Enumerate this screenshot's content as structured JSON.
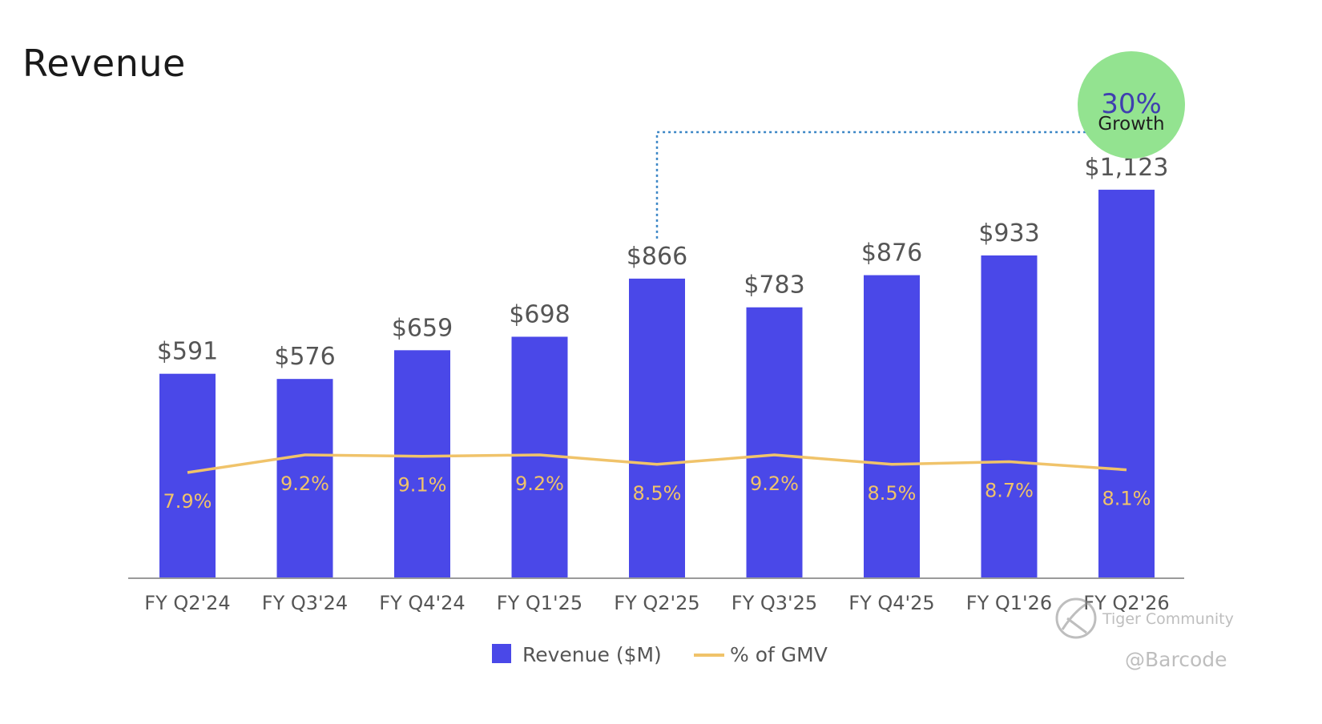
{
  "page_title": "Revenue",
  "chart_data": {
    "type": "bar",
    "title": "Revenue",
    "categories": [
      "FY Q2'24",
      "FY Q3'24",
      "FY Q4'24",
      "FY Q1'25",
      "FY Q2'25",
      "FY Q3'25",
      "FY Q4'25",
      "FY Q1'26",
      "FY Q2'26"
    ],
    "series": [
      {
        "name": "Revenue ($M)",
        "type": "bar",
        "values": [
          591,
          576,
          659,
          698,
          866,
          783,
          876,
          933,
          1123
        ],
        "labels": [
          "$591",
          "$576",
          "$659",
          "$698",
          "$866",
          "$783",
          "$876",
          "$933",
          "$1,123"
        ],
        "color": "#4a48e8"
      },
      {
        "name": "% of GMV",
        "type": "line",
        "values": [
          7.9,
          9.2,
          9.1,
          9.2,
          8.5,
          9.2,
          8.5,
          8.7,
          8.1
        ],
        "labels": [
          "7.9%",
          "9.2%",
          "9.1%",
          "9.2%",
          "8.5%",
          "9.2%",
          "8.5%",
          "8.7%",
          "8.1%"
        ],
        "color": "#f0c36a"
      }
    ],
    "ylim": [
      0,
      1250
    ],
    "legend": {
      "position": "bottom-center"
    },
    "annotation": {
      "from_category": "FY Q2'25",
      "to_category": "FY Q2'26",
      "value": "30%",
      "text": "Growth",
      "badge_color": "#93e390",
      "value_color": "#3f3fb0",
      "connector_color": "#3b86c6"
    },
    "axis_color": "#9a9a9a",
    "label_color": "#555555"
  },
  "watermark": {
    "brand": "Tiger Community",
    "handle": "@Barcode"
  }
}
